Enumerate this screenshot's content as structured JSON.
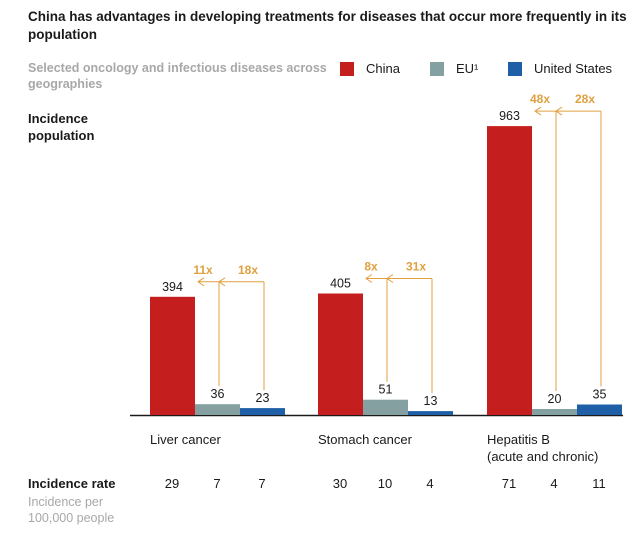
{
  "title": "China has advantages in developing treatments for diseases that occur more frequently in its population",
  "subtitle": "Selected oncology and infectious diseases across geographies",
  "legend": [
    {
      "name": "China",
      "color": "#c41e1e"
    },
    {
      "name": "EU¹",
      "color": "#84a0a0"
    },
    {
      "name": "United States",
      "color": "#1f5fa8"
    }
  ],
  "y_axis_label": "Incidence population",
  "incidence_rate": {
    "label": "Incidence rate",
    "sublabel": "Incidence per 100,000 people"
  },
  "chart_data": {
    "type": "bar",
    "title": "China has advantages in developing treatments for diseases that occur more frequently in its population",
    "subtitle": "Selected oncology and infectious diseases across geographies",
    "ylabel": "Incidence population",
    "categories": [
      "Liver cancer",
      "Stomach cancer",
      "Hepatitis B (acute and chronic)"
    ],
    "category_lines": [
      [
        "Liver cancer"
      ],
      [
        "Stomach cancer"
      ],
      [
        "Hepatitis B",
        "(acute and chronic)"
      ]
    ],
    "series": [
      {
        "name": "China",
        "color": "#c41e1e",
        "values": [
          394,
          405,
          963
        ]
      },
      {
        "name": "EU¹",
        "color": "#84a0a0",
        "values": [
          36,
          51,
          20
        ]
      },
      {
        "name": "United States",
        "color": "#1f5fa8",
        "values": [
          23,
          13,
          35
        ]
      }
    ],
    "multipliers": [
      {
        "eu": "11x",
        "us": "18x"
      },
      {
        "eu": "8x",
        "us": "31x"
      },
      {
        "eu": "48x",
        "us": "28x"
      }
    ],
    "incidence_rate": [
      [
        29,
        7,
        7
      ],
      [
        30,
        10,
        4
      ],
      [
        71,
        4,
        11
      ]
    ],
    "ylim": [
      0,
      1000
    ],
    "grid": false,
    "legend_position": "top-right",
    "annotation_color": "#e0a040"
  }
}
